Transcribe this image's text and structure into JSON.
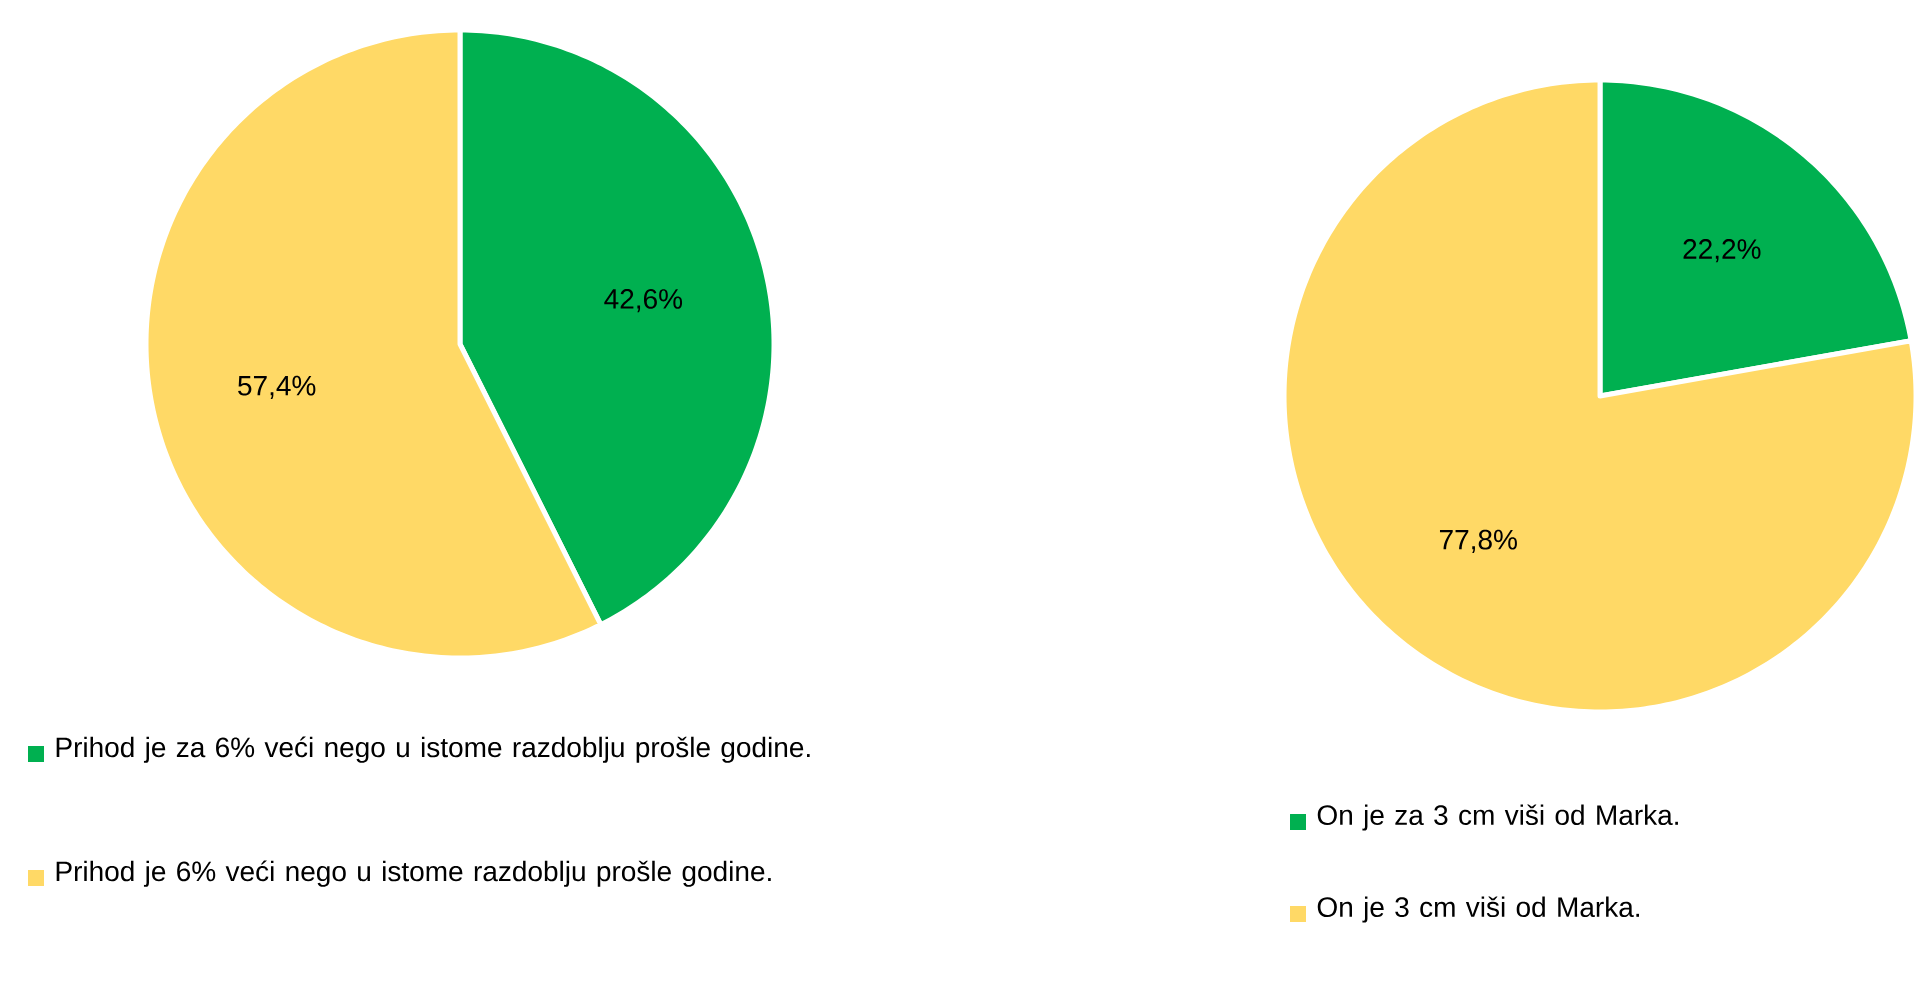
{
  "chart_data": [
    {
      "type": "pie",
      "categories": [
        "Prihod je za 6% veći nego u istome razdoblju prošle godine.",
        "Prihod je 6% veći nego u istome razdoblju prošle godine."
      ],
      "values": [
        42.6,
        57.4
      ],
      "colors": [
        "#00b050",
        "#ffd966"
      ],
      "value_labels": [
        "42,6%",
        "57,4%"
      ],
      "legend": "bottom"
    },
    {
      "type": "pie",
      "categories": [
        "On je za 3 cm viši od Marka.",
        "On je 3 cm viši od Marka."
      ],
      "values": [
        22.2,
        77.8
      ],
      "colors": [
        "#00b050",
        "#ffd966"
      ],
      "value_labels": [
        "22,2%",
        "77,8%"
      ],
      "legend": "bottom"
    }
  ]
}
